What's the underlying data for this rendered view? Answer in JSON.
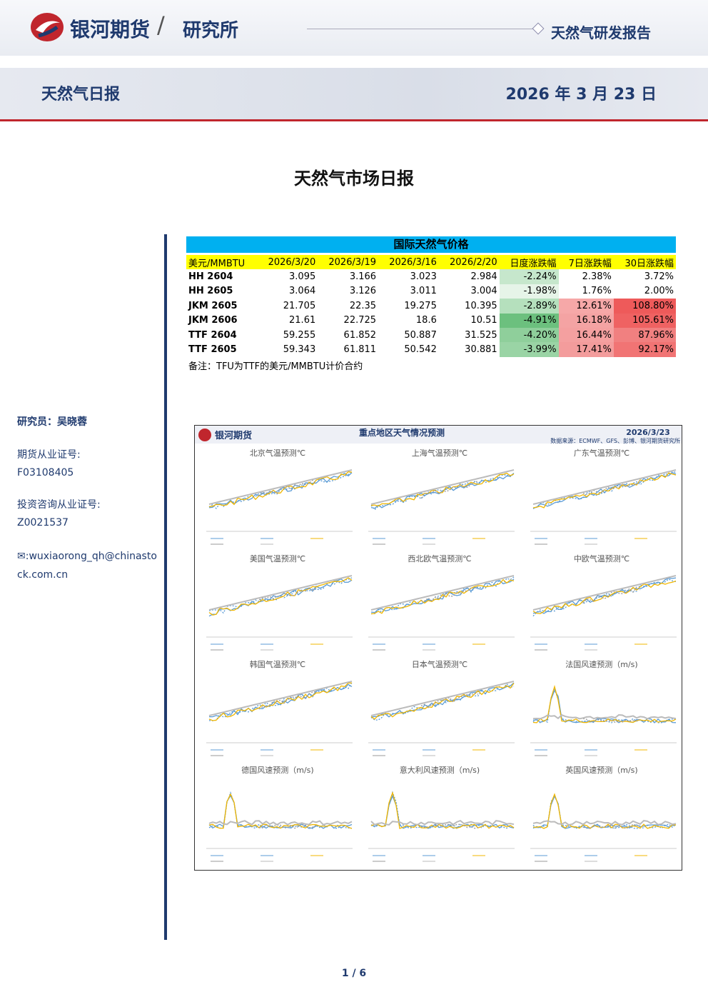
{
  "header": {
    "brand": "银河期货",
    "slash": "/",
    "dept": "研究所",
    "report_type": "天然气研发报告"
  },
  "banner": {
    "title": "天然气日报",
    "date": "2026 年 3 月 23 日"
  },
  "main_title": "天然气市场日报",
  "sidebar": {
    "analyst": "研究员：吴晓蓉",
    "license_label": "期货从业证号:",
    "license": "F03108405",
    "advisor_label": "投资咨询从业证号:",
    "advisor": "Z0021537",
    "email": "✉:wuxiaorong_qh@chinastock.com.cn"
  },
  "table": {
    "title": "国际天然气价格",
    "columns": [
      "美元/MMBTU",
      "2026/3/20",
      "2026/3/19",
      "2026/3/16",
      "2026/2/20",
      "日度涨跌幅",
      "7日涨跌幅",
      "30日涨跌幅"
    ],
    "rows": [
      [
        "HH 2604",
        "3.095",
        "3.166",
        "3.023",
        "2.984",
        "-2.24%",
        "2.38%",
        "3.72%"
      ],
      [
        "HH 2605",
        "3.064",
        "3.126",
        "3.011",
        "3.004",
        "-1.98%",
        "1.76%",
        "2.00%"
      ],
      [
        "JKM 2605",
        "21.705",
        "22.35",
        "19.275",
        "10.395",
        "-2.89%",
        "12.61%",
        "108.80%"
      ],
      [
        "JKM 2606",
        "21.61",
        "22.725",
        "18.6",
        "10.51",
        "-4.91%",
        "16.18%",
        "105.61%"
      ],
      [
        "TTF 2604",
        "59.255",
        "61.852",
        "50.887",
        "31.525",
        "-4.20%",
        "16.44%",
        "87.96%"
      ],
      [
        "TTF 2605",
        "59.343",
        "61.811",
        "50.542",
        "30.881",
        "-3.99%",
        "17.41%",
        "92.17%"
      ]
    ],
    "note": "备注：TFU为TTF的美元/MMBTU计价合约"
  },
  "figure": {
    "brand": "银河期货",
    "title": "重点地区天气情况预测",
    "date": "2026/3/23",
    "source": "数据来源：ECMWF、GFS、彭博、银河期货研究所",
    "panels": [
      "北京气温预测℃",
      "上海气温预测℃",
      "广东气温预测℃",
      "美国气温预测℃",
      "西北欧气温预测℃",
      "中欧气温预测℃",
      "韩国气温预测℃",
      "日本气温预测℃",
      "法国风速预测（m/s)",
      "德国风速预测（m/s)",
      "意大利风速预测（m/s)",
      "英国风速预测（m/s)"
    ]
  },
  "footer": {
    "page": "1 / 6"
  }
}
